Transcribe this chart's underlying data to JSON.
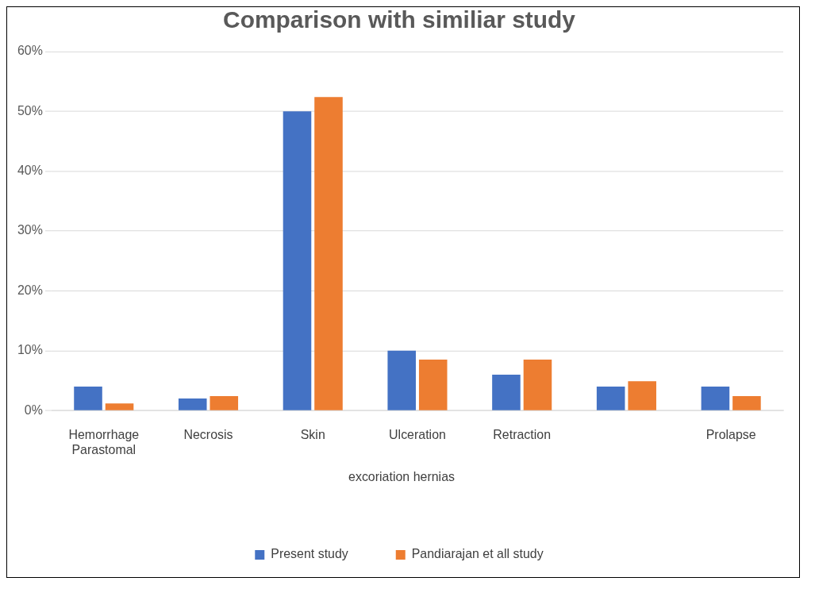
{
  "chart_data": {
    "type": "bar",
    "title": "Comparison with similiar study",
    "categories": [
      "Hemorrhage Parastomal",
      "Necrosis",
      "Skin",
      "Ulceration",
      "Retraction",
      null,
      "Prolapse"
    ],
    "series": [
      {
        "name": "Present study",
        "color": "#4472c4",
        "values": [
          4,
          2,
          50,
          10,
          6,
          4,
          4
        ]
      },
      {
        "name": "Pandiarajan et all study",
        "color": "#ed7d31",
        "values": [
          1.2,
          2.4,
          52.4,
          8.5,
          8.5,
          4.9,
          2.4
        ]
      }
    ],
    "ylim": [
      0,
      60
    ],
    "yticks": [
      {
        "value": 0,
        "label": "0%"
      },
      {
        "value": 10,
        "label": "10%"
      },
      {
        "value": 20,
        "label": "20%"
      },
      {
        "value": 30,
        "label": "30%"
      },
      {
        "value": 40,
        "label": "40%"
      },
      {
        "value": 50,
        "label": "50%"
      },
      {
        "value": 60,
        "label": "60%"
      }
    ],
    "grid": "y",
    "legend": "bottom",
    "annotations": [
      "excoriation hernias"
    ]
  }
}
